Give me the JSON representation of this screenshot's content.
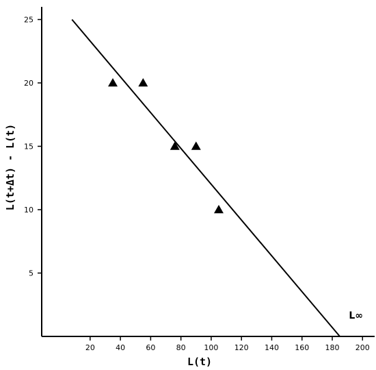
{
  "chart_data": {
    "type": "scatter",
    "title": "",
    "xlabel": "L(t)",
    "ylabel": "L(t+Δt) - L(t)",
    "xlim": [
      -12,
      208
    ],
    "ylim": [
      0,
      26
    ],
    "x_ticks": [
      20,
      40,
      60,
      80,
      100,
      120,
      140,
      160,
      180,
      200
    ],
    "y_ticks": [
      5,
      10,
      15,
      20,
      25
    ],
    "x_tick_labels": [
      "20",
      "40",
      "60",
      "80",
      "100",
      "120",
      "140",
      "160",
      "180",
      "200"
    ],
    "y_tick_labels": [
      "5",
      "10",
      "15",
      "20",
      "25"
    ],
    "grid": false,
    "points": [
      {
        "x": 35,
        "y": 20
      },
      {
        "x": 55,
        "y": 20
      },
      {
        "x": 76,
        "y": 15
      },
      {
        "x": 90,
        "y": 15
      },
      {
        "x": 105,
        "y": 10
      }
    ],
    "regression_line": {
      "x1": 8,
      "y1": 25,
      "x2": 185,
      "y2": 0
    },
    "annotations": [
      {
        "text": "L∞",
        "x": 191,
        "y": 1.4
      }
    ],
    "marker": "triangle",
    "color": "#000000"
  }
}
